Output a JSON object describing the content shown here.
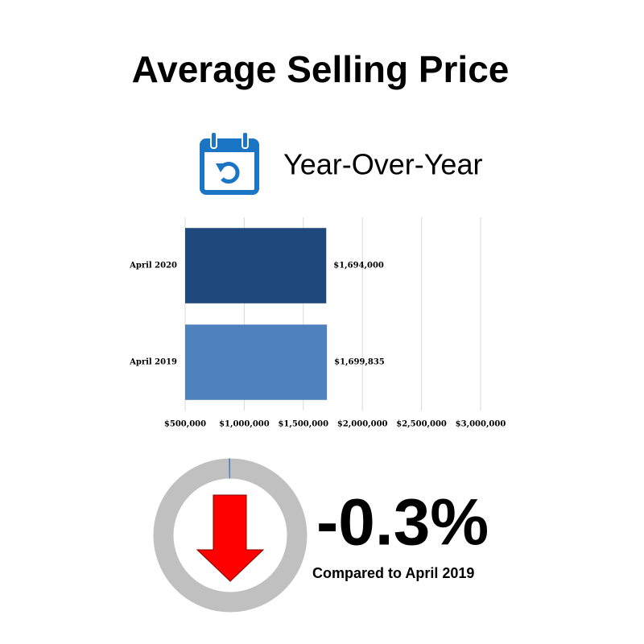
{
  "chart_data": {
    "type": "bar",
    "orientation": "horizontal",
    "title": "Average Selling Price",
    "subtitle": "Year-Over-Year",
    "categories": [
      "April 2020",
      "April 2019"
    ],
    "values": [
      1694000,
      1699835
    ],
    "value_labels": [
      "$1,694,000",
      "$1,699,835"
    ],
    "colors": [
      "#1f497d",
      "#4f81bd"
    ],
    "xlim": [
      500000,
      3000000
    ],
    "xticks": [
      {
        "value": 500000,
        "label": "$500,000"
      },
      {
        "value": 1000000,
        "label": "$1,000,000"
      },
      {
        "value": 1500000,
        "label": "$1,500,000"
      },
      {
        "value": 2000000,
        "label": "$2,000,000"
      },
      {
        "value": 2500000,
        "label": "$2,500,000"
      },
      {
        "value": 3000000,
        "label": "$3,000,000"
      }
    ],
    "grid": true,
    "change": {
      "value": -0.3,
      "value_label": "-0.3%",
      "caption": "Compared to April 2019",
      "color": "#4f81bd"
    }
  }
}
